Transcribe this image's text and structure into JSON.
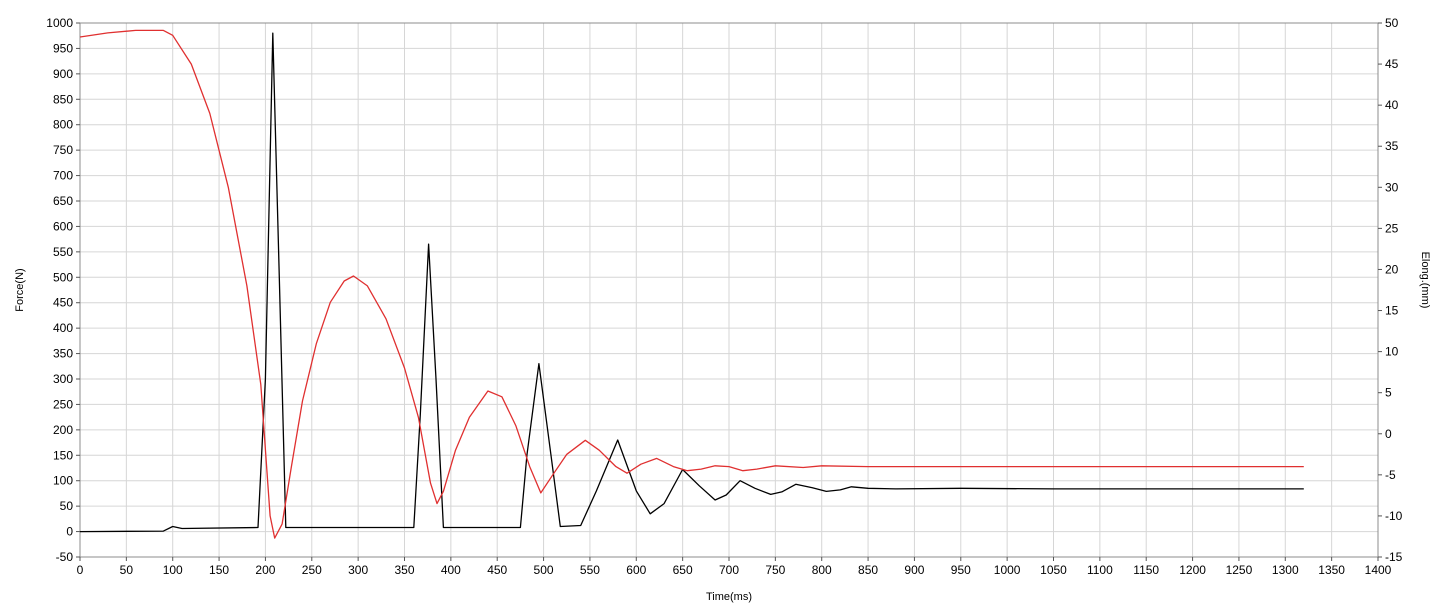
{
  "chart_data": {
    "type": "line",
    "xlabel": "Time(ms)",
    "ylabel_left": "Force(N)",
    "ylabel_right": "Elong.(mm)",
    "xlim": [
      0,
      1400
    ],
    "ylim_left": [
      -50,
      1000
    ],
    "ylim_right": [
      -15,
      50
    ],
    "x_ticks": [
      0,
      50,
      100,
      150,
      200,
      250,
      300,
      350,
      400,
      450,
      500,
      550,
      600,
      650,
      700,
      750,
      800,
      850,
      900,
      950,
      1000,
      1050,
      1100,
      1150,
      1200,
      1250,
      1300,
      1350,
      1400
    ],
    "y_left_ticks": [
      -50,
      0,
      50,
      100,
      150,
      200,
      250,
      300,
      350,
      400,
      450,
      500,
      550,
      600,
      650,
      700,
      750,
      800,
      850,
      900,
      950,
      1000
    ],
    "y_right_ticks": [
      -15,
      -10,
      -5,
      0,
      5,
      10,
      15,
      20,
      25,
      30,
      35,
      40,
      45,
      50
    ],
    "grid": true,
    "series": [
      {
        "axis": "left",
        "color": "#000000",
        "points": [
          [
            0,
            0
          ],
          [
            90,
            1
          ],
          [
            100,
            10
          ],
          [
            110,
            6
          ],
          [
            192,
            8
          ],
          [
            200,
            300
          ],
          [
            208,
            980
          ],
          [
            215,
            500
          ],
          [
            222,
            8
          ],
          [
            360,
            8
          ],
          [
            367,
            230
          ],
          [
            376,
            565
          ],
          [
            384,
            300
          ],
          [
            392,
            8
          ],
          [
            475,
            8
          ],
          [
            482,
            150
          ],
          [
            495,
            330
          ],
          [
            508,
            150
          ],
          [
            518,
            10
          ],
          [
            540,
            12
          ],
          [
            557,
            80
          ],
          [
            580,
            180
          ],
          [
            600,
            80
          ],
          [
            615,
            35
          ],
          [
            630,
            55
          ],
          [
            650,
            122
          ],
          [
            668,
            90
          ],
          [
            685,
            62
          ],
          [
            697,
            72
          ],
          [
            712,
            100
          ],
          [
            728,
            85
          ],
          [
            745,
            73
          ],
          [
            757,
            78
          ],
          [
            772,
            93
          ],
          [
            790,
            86
          ],
          [
            805,
            79
          ],
          [
            820,
            82
          ],
          [
            832,
            88
          ],
          [
            850,
            85
          ],
          [
            880,
            84
          ],
          [
            950,
            85
          ],
          [
            1050,
            84
          ],
          [
            1150,
            84
          ],
          [
            1250,
            84
          ],
          [
            1320,
            84
          ]
        ]
      },
      {
        "axis": "right",
        "color": "#e03030",
        "points": [
          [
            0,
            48.3
          ],
          [
            30,
            48.8
          ],
          [
            60,
            49.1
          ],
          [
            90,
            49.1
          ],
          [
            100,
            48.5
          ],
          [
            120,
            45
          ],
          [
            140,
            39
          ],
          [
            160,
            30
          ],
          [
            180,
            18
          ],
          [
            195,
            6
          ],
          [
            205,
            -10
          ],
          [
            210,
            -12.7
          ],
          [
            218,
            -11
          ],
          [
            228,
            -4
          ],
          [
            240,
            4
          ],
          [
            255,
            11
          ],
          [
            270,
            16
          ],
          [
            285,
            18.6
          ],
          [
            295,
            19.2
          ],
          [
            310,
            18
          ],
          [
            330,
            14
          ],
          [
            350,
            8
          ],
          [
            365,
            2
          ],
          [
            378,
            -6
          ],
          [
            385,
            -8.5
          ],
          [
            392,
            -7
          ],
          [
            405,
            -2
          ],
          [
            420,
            2
          ],
          [
            440,
            5.2
          ],
          [
            455,
            4.5
          ],
          [
            470,
            1
          ],
          [
            485,
            -4
          ],
          [
            497,
            -7.2
          ],
          [
            510,
            -5
          ],
          [
            525,
            -2.5
          ],
          [
            545,
            -0.8
          ],
          [
            560,
            -2
          ],
          [
            578,
            -4
          ],
          [
            590,
            -4.8
          ],
          [
            605,
            -3.7
          ],
          [
            622,
            -3
          ],
          [
            640,
            -4
          ],
          [
            655,
            -4.5
          ],
          [
            670,
            -4.3
          ],
          [
            685,
            -3.9
          ],
          [
            700,
            -4
          ],
          [
            715,
            -4.5
          ],
          [
            730,
            -4.3
          ],
          [
            750,
            -3.9
          ],
          [
            780,
            -4.1
          ],
          [
            800,
            -3.9
          ],
          [
            850,
            -4
          ],
          [
            1000,
            -4
          ],
          [
            1200,
            -4
          ],
          [
            1320,
            -4
          ]
        ]
      }
    ]
  }
}
